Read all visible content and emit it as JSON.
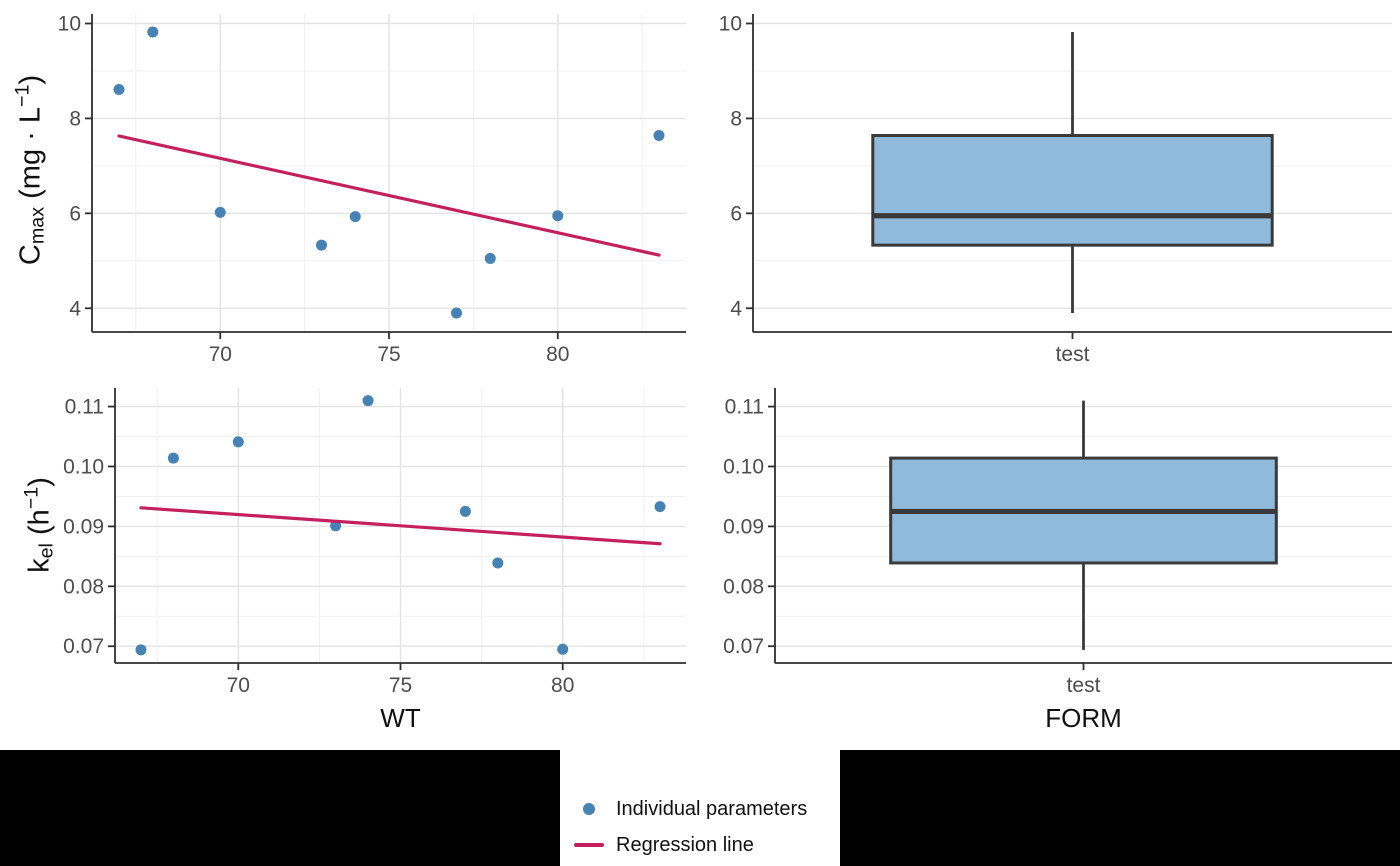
{
  "colors": {
    "point": "#4682B4",
    "regression_line": "#C4205E",
    "box_fill": "#8FBADC",
    "box_stroke": "#3A3A3A",
    "axis": "#2F2F2F",
    "grid_major": "#E3E3E3",
    "grid_minor": "#F1F1F1",
    "tick_label": "#4D4D4D",
    "axis_title": "#111111",
    "mask": "#000000",
    "legend_bg": "#FFFFFF"
  },
  "legend": {
    "items": [
      {
        "symbol": "point",
        "label": "Individual parameters"
      },
      {
        "symbol": "line",
        "label": "Regression line"
      }
    ]
  },
  "chart_data": [
    {
      "id": "cmax_vs_wt",
      "type": "scatter",
      "position": "top-left",
      "xlabel": "",
      "ylabel": "Cmax (mg · L−1)",
      "ylabel_parts": [
        {
          "text": "C"
        },
        {
          "text": "max",
          "script": "sub"
        },
        {
          "text": " (mg · L"
        },
        {
          "text": "−1",
          "script": "sup"
        },
        {
          "text": ")"
        }
      ],
      "xlim": [
        66.2,
        83.8
      ],
      "ylim": [
        3.5,
        10.2
      ],
      "x_ticks": [
        70,
        75,
        80
      ],
      "x_tick_labels": [
        "70",
        "75",
        "80"
      ],
      "x_minor": [
        67.5,
        72.5,
        77.5,
        82.5
      ],
      "y_ticks": [
        4,
        6,
        8,
        10
      ],
      "y_tick_labels": [
        "4",
        "6",
        "8",
        "10"
      ],
      "y_minor": [
        5,
        7,
        9
      ],
      "x": [
        67,
        68,
        70,
        73,
        74,
        77,
        78,
        80,
        83
      ],
      "y": [
        8.61,
        9.82,
        6.02,
        5.33,
        5.93,
        3.9,
        5.05,
        5.95,
        7.64
      ],
      "regression": {
        "x1": 67,
        "y1": 7.63,
        "x2": 83,
        "y2": 5.12
      }
    },
    {
      "id": "cmax_boxplot",
      "type": "box",
      "position": "top-right",
      "xlabel": "",
      "categories": [
        "test"
      ],
      "ylim": [
        3.5,
        10.2
      ],
      "y_ticks": [
        4,
        6,
        8,
        10
      ],
      "y_tick_labels": [
        "4",
        "6",
        "8",
        "10"
      ],
      "y_minor": [
        5,
        7,
        9
      ],
      "box": {
        "whisker_min": 3.9,
        "q1": 5.33,
        "median": 5.95,
        "q3": 7.64,
        "whisker_max": 9.82
      }
    },
    {
      "id": "kel_vs_wt",
      "type": "scatter",
      "position": "bottom-left",
      "xlabel": "WT",
      "ylabel": "kel (h−1)",
      "ylabel_parts": [
        {
          "text": "k"
        },
        {
          "text": "el",
          "script": "sub"
        },
        {
          "text": " (h"
        },
        {
          "text": "−1",
          "script": "sup"
        },
        {
          "text": ")"
        }
      ],
      "xlim": [
        66.2,
        83.8
      ],
      "ylim": [
        0.0672,
        0.1131
      ],
      "x_ticks": [
        70,
        75,
        80
      ],
      "x_tick_labels": [
        "70",
        "75",
        "80"
      ],
      "x_minor": [
        67.5,
        72.5,
        77.5,
        82.5
      ],
      "y_ticks": [
        0.07,
        0.08,
        0.09,
        0.1,
        0.11
      ],
      "y_tick_labels": [
        "0.07",
        "0.08",
        "0.09",
        "0.10",
        "0.11"
      ],
      "y_minor": [
        0.075,
        0.085,
        0.095,
        0.105
      ],
      "x": [
        67,
        68,
        70,
        73,
        74,
        77,
        78,
        80,
        83
      ],
      "y": [
        0.0694,
        0.1014,
        0.1041,
        0.0901,
        0.111,
        0.0925,
        0.0839,
        0.0695,
        0.0933
      ],
      "regression": {
        "x1": 67,
        "y1": 0.0931,
        "x2": 83,
        "y2": 0.0871
      }
    },
    {
      "id": "kel_boxplot",
      "type": "box",
      "position": "bottom-right",
      "xlabel": "FORM",
      "categories": [
        "test"
      ],
      "ylim": [
        0.0672,
        0.1131
      ],
      "y_ticks": [
        0.07,
        0.08,
        0.09,
        0.1,
        0.11
      ],
      "y_tick_labels": [
        "0.07",
        "0.08",
        "0.09",
        "0.10",
        "0.11"
      ],
      "y_minor": [
        0.075,
        0.085,
        0.095,
        0.105
      ],
      "box": {
        "whisker_min": 0.0694,
        "q1": 0.0839,
        "median": 0.0925,
        "q3": 0.1014,
        "whisker_max": 0.111
      }
    }
  ]
}
